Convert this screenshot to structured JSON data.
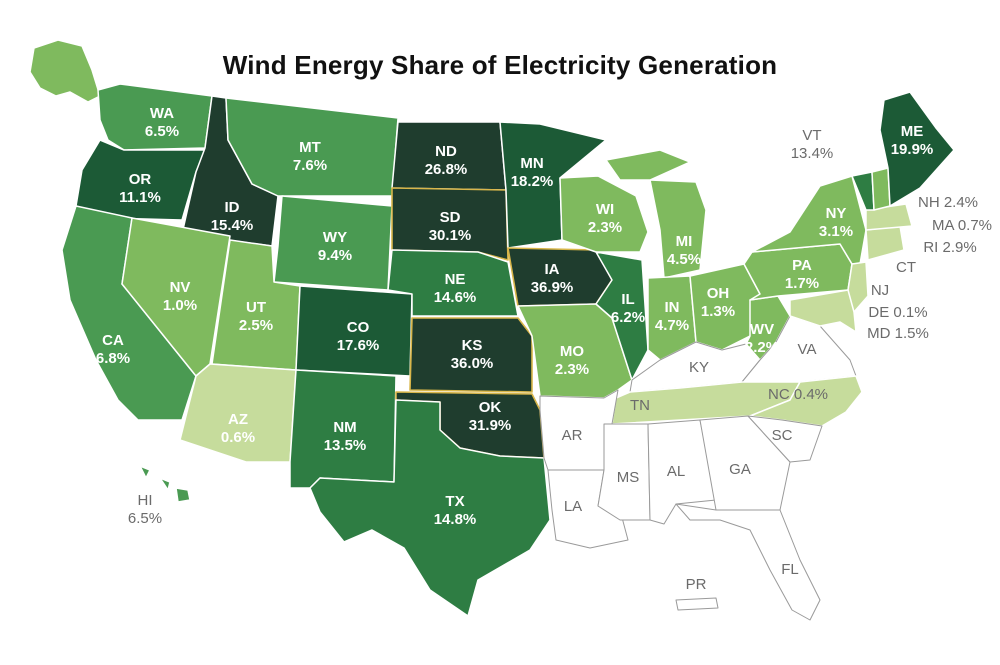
{
  "title": "Wind Energy Share of Electricity Generation",
  "legend_colors": {
    "c5": "#1f3d2e",
    "c4": "#1c5a36",
    "c3": "#2e7d43",
    "c2": "#4a9a52",
    "c1": "#7fba5e",
    "c0": "#c6dc9c",
    "none": "#ffffff"
  },
  "states": {
    "WA": {
      "abbr": "WA",
      "value": "6.5%",
      "share": 6.5
    },
    "OR": {
      "abbr": "OR",
      "value": "11.1%",
      "share": 11.1
    },
    "CA": {
      "abbr": "CA",
      "value": "6.8%",
      "share": 6.8
    },
    "ID": {
      "abbr": "ID",
      "value": "15.4%",
      "share": 15.4
    },
    "NV": {
      "abbr": "NV",
      "value": "1.0%",
      "share": 1.0
    },
    "MT": {
      "abbr": "MT",
      "value": "7.6%",
      "share": 7.6
    },
    "WY": {
      "abbr": "WY",
      "value": "9.4%",
      "share": 9.4
    },
    "UT": {
      "abbr": "UT",
      "value": "2.5%",
      "share": 2.5
    },
    "AZ": {
      "abbr": "AZ",
      "value": "0.6%",
      "share": 0.6
    },
    "CO": {
      "abbr": "CO",
      "value": "17.6%",
      "share": 17.6
    },
    "NM": {
      "abbr": "NM",
      "value": "13.5%",
      "share": 13.5
    },
    "ND": {
      "abbr": "ND",
      "value": "26.8%",
      "share": 26.8
    },
    "SD": {
      "abbr": "SD",
      "value": "30.1%",
      "share": 30.1
    },
    "NE": {
      "abbr": "NE",
      "value": "14.6%",
      "share": 14.6
    },
    "KS": {
      "abbr": "KS",
      "value": "36.0%",
      "share": 36.0
    },
    "OK": {
      "abbr": "OK",
      "value": "31.9%",
      "share": 31.9
    },
    "TX": {
      "abbr": "TX",
      "value": "14.8%",
      "share": 14.8
    },
    "MN": {
      "abbr": "MN",
      "value": "18.2%",
      "share": 18.2
    },
    "IA": {
      "abbr": "IA",
      "value": "36.9%",
      "share": 36.9
    },
    "MO": {
      "abbr": "MO",
      "value": "2.3%",
      "share": 2.3
    },
    "WI": {
      "abbr": "WI",
      "value": "2.3%",
      "share": 2.3
    },
    "IL": {
      "abbr": "IL",
      "value": "6.2%",
      "share": 6.2
    },
    "MI": {
      "abbr": "MI",
      "value": "4.5%",
      "share": 4.5
    },
    "IN": {
      "abbr": "IN",
      "value": "4.7%",
      "share": 4.7
    },
    "OH": {
      "abbr": "OH",
      "value": "1.3%",
      "share": 1.3
    },
    "WV": {
      "abbr": "WV",
      "value": "2.2%",
      "share": 2.2
    },
    "PA": {
      "abbr": "PA",
      "value": "1.7%",
      "share": 1.7
    },
    "NY": {
      "abbr": "NY",
      "value": "3.1%",
      "share": 3.1
    },
    "ME": {
      "abbr": "ME",
      "value": "19.9%",
      "share": 19.9
    },
    "HI": {
      "abbr": "HI",
      "value": "6.5%",
      "share": 6.5
    },
    "VT": {
      "text": "VT 13.4%",
      "abbr": "VT",
      "value": "13.4%",
      "share": 13.4
    },
    "NH": {
      "text": "NH 2.4%",
      "share": 2.4
    },
    "MA": {
      "text": "MA 0.7%",
      "share": 0.7
    },
    "RI": {
      "text": "RI 2.9%",
      "share": 2.9
    },
    "DE": {
      "text": "DE 0.1%",
      "share": 0.1
    },
    "MD": {
      "text": "MD 1.5%",
      "share": 1.5
    },
    "NC": {
      "text": "NC 0.4%",
      "share": 0.4
    },
    "TN": {
      "text": "TN"
    },
    "CT": {
      "text": "CT"
    },
    "NJ": {
      "text": "NJ"
    },
    "KY": {
      "text": "KY"
    },
    "VA": {
      "text": "VA"
    },
    "AR": {
      "text": "AR"
    },
    "MS": {
      "text": "MS"
    },
    "AL": {
      "text": "AL"
    },
    "GA": {
      "text": "GA"
    },
    "SC": {
      "text": "SC"
    },
    "LA": {
      "text": "LA"
    },
    "FL": {
      "text": "FL"
    },
    "PR": {
      "text": "PR"
    },
    "AK": {
      "text": ""
    }
  }
}
